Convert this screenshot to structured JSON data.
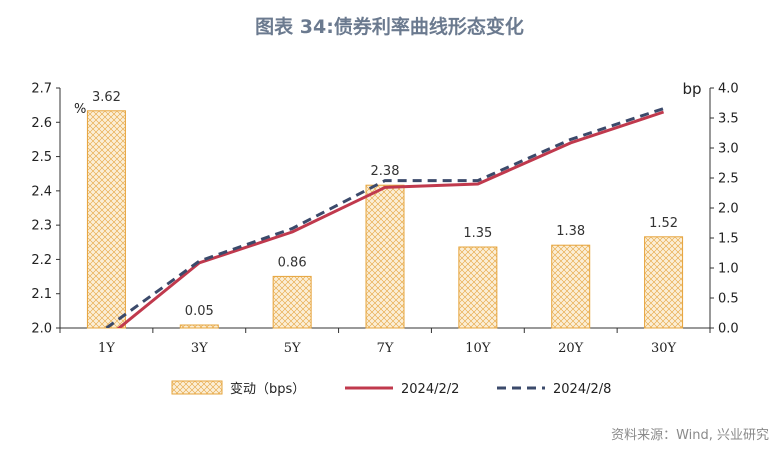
{
  "title": "图表 34:债券利率曲线形态变化",
  "source": "资料来源：Wind, 兴业研究",
  "colors": {
    "bar_fill": "#fbeed6",
    "bar_border": "#e6a43c",
    "line_0202": "#c0394d",
    "line_0208": "#3b4a6b"
  },
  "chart_data": {
    "type": "bar+line",
    "categories": [
      "1Y",
      "3Y",
      "5Y",
      "7Y",
      "10Y",
      "20Y",
      "30Y"
    ],
    "left_axis": {
      "unit_label": "%",
      "ylim": [
        2.0,
        2.7
      ],
      "ticks": [
        "2.0",
        "2.1",
        "2.2",
        "2.3",
        "2.4",
        "2.5",
        "2.6",
        "2.7"
      ]
    },
    "right_axis": {
      "unit_label": "bp",
      "ylim": [
        0.0,
        4.0
      ],
      "ticks": [
        "0.0",
        "0.5",
        "1.0",
        "1.5",
        "2.0",
        "2.5",
        "3.0",
        "3.5",
        "4.0"
      ]
    },
    "bars": {
      "name": "变动（bps）",
      "axis": "right",
      "values": [
        3.62,
        0.05,
        0.86,
        2.38,
        1.35,
        1.38,
        1.52
      ],
      "labels": [
        "3.62",
        "0.05",
        "0.86",
        "2.38",
        "1.35",
        "1.38",
        "1.52"
      ]
    },
    "series": [
      {
        "name": "2024/2/2",
        "axis": "left",
        "style": "solid",
        "values": [
          1.97,
          2.19,
          2.28,
          2.41,
          2.42,
          2.54,
          2.63
        ]
      },
      {
        "name": "2024/2/8",
        "axis": "left",
        "style": "dashed",
        "values": [
          2.0,
          2.195,
          2.29,
          2.43,
          2.43,
          2.55,
          2.64
        ]
      }
    ],
    "grid": false,
    "legend_position": "bottom"
  }
}
